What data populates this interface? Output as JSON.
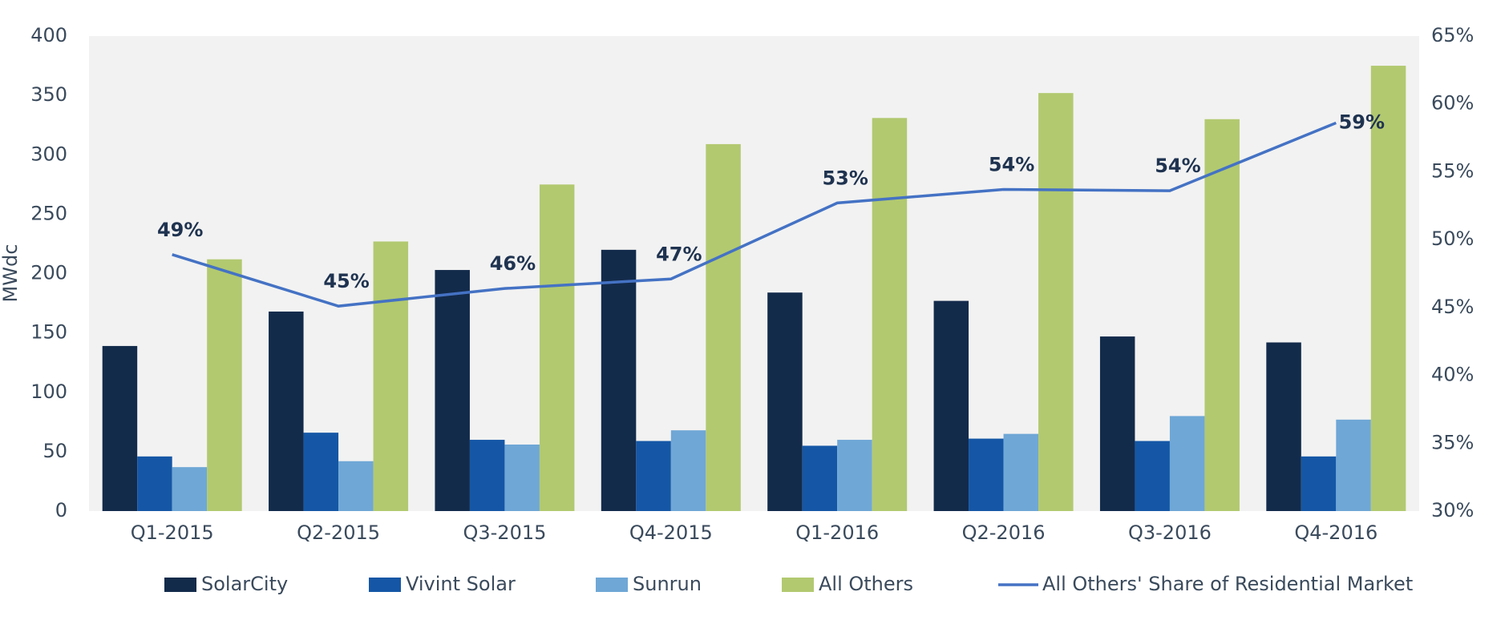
{
  "chart_data": {
    "type": "bar",
    "categories": [
      "Q1-2015",
      "Q2-2015",
      "Q3-2015",
      "Q4-2015",
      "Q1-2016",
      "Q2-2016",
      "Q3-2016",
      "Q4-2016"
    ],
    "y_label": "MWdc",
    "ylim": [
      0,
      400
    ],
    "yticks": [
      0,
      50,
      100,
      150,
      200,
      250,
      300,
      350,
      400
    ],
    "y2lim": [
      30,
      65
    ],
    "y2ticks": [
      {
        "value": 30,
        "label": "30%"
      },
      {
        "value": 35,
        "label": "35%"
      },
      {
        "value": 40,
        "label": "40%"
      },
      {
        "value": 45,
        "label": "45%"
      },
      {
        "value": 50,
        "label": "50%"
      },
      {
        "value": 55,
        "label": "55%"
      },
      {
        "value": 60,
        "label": "60%"
      },
      {
        "value": 65,
        "label": "65%"
      }
    ],
    "series": [
      {
        "name": "SolarCity",
        "type": "bar",
        "color": "#132b4b",
        "values": [
          139,
          168,
          203,
          220,
          184,
          177,
          147,
          142
        ]
      },
      {
        "name": "Vivint Solar",
        "type": "bar",
        "color": "#1557a6",
        "values": [
          46,
          66,
          60,
          59,
          55,
          61,
          59,
          46
        ]
      },
      {
        "name": "Sunrun",
        "type": "bar",
        "color": "#6fa7d6",
        "values": [
          37,
          42,
          56,
          68,
          60,
          65,
          80,
          77
        ]
      },
      {
        "name": "All Others",
        "type": "bar",
        "color": "#b2c970",
        "values": [
          212,
          227,
          275,
          309,
          331,
          352,
          330,
          375
        ]
      },
      {
        "name": "All Others' Share of Residential Market",
        "type": "line",
        "axis": "y2",
        "color": "#4472c4",
        "values": [
          48.9,
          45.1,
          46.4,
          47.1,
          52.7,
          53.7,
          53.6,
          58.6
        ],
        "value_labels": [
          "49%",
          "45%",
          "46%",
          "47%",
          "53%",
          "54%",
          "54%",
          "59%"
        ]
      }
    ]
  }
}
